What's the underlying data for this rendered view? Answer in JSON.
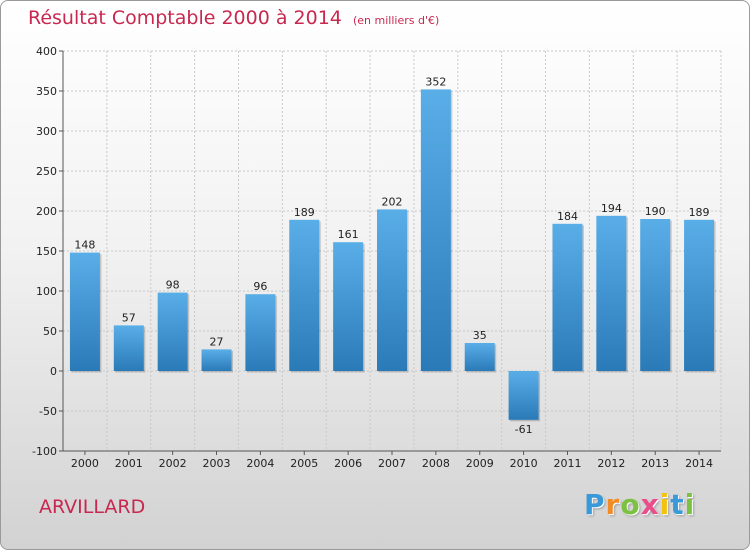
{
  "chart_data": {
    "type": "bar",
    "title": "Résultat Comptable 2000 à 2014",
    "subtitle": "(en milliers d'€)",
    "categories": [
      "2000",
      "2001",
      "2002",
      "2003",
      "2004",
      "2005",
      "2006",
      "2007",
      "2008",
      "2009",
      "2010",
      "2011",
      "2012",
      "2013",
      "2014"
    ],
    "values": [
      148,
      57,
      98,
      27,
      96,
      189,
      161,
      202,
      352,
      35,
      -61,
      184,
      194,
      190,
      189
    ],
    "ylim": [
      -100,
      400
    ],
    "yticks": [
      "400",
      "350",
      "300",
      "250",
      "200",
      "150",
      "100",
      "50",
      "0",
      "-50",
      "-100"
    ],
    "grid": true,
    "xlabel": "",
    "ylabel": ""
  },
  "commune": "ARVILLARD",
  "logo": {
    "text": "Proxiti",
    "letters": [
      "P",
      "r",
      "o",
      "x",
      "i",
      "t",
      "i"
    ],
    "colors": [
      "#3a9ad9",
      "#f28c28",
      "#7cc242",
      "#e84e8a",
      "#f4c20d",
      "#3a9ad9",
      "#7cc242"
    ]
  },
  "colors": {
    "bar_top": "#5aaee8",
    "bar_bottom": "#2a7ab8",
    "title": "#c8284f",
    "grid": "#c8c8c8"
  }
}
